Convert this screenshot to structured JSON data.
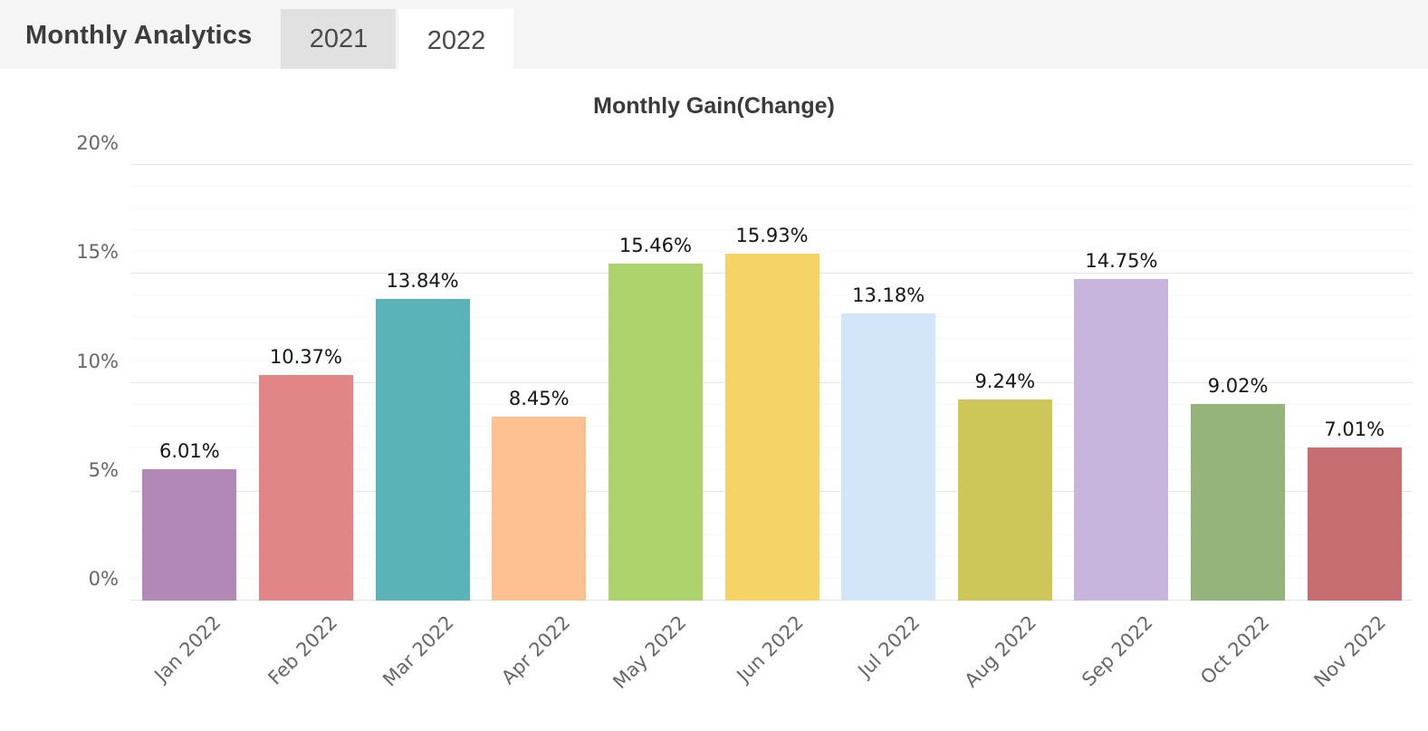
{
  "header": {
    "title": "Monthly Analytics",
    "tabs": [
      {
        "label": "2021",
        "active": false
      },
      {
        "label": "2022",
        "active": true
      }
    ]
  },
  "chart_data": {
    "type": "bar",
    "title": "Monthly Gain(Change)",
    "categories": [
      "Jan 2022",
      "Feb 2022",
      "Mar 2022",
      "Apr 2022",
      "May 2022",
      "Jun 2022",
      "Jul 2022",
      "Aug 2022",
      "Sep 2022",
      "Oct 2022",
      "Nov 2022"
    ],
    "values": [
      6.01,
      10.37,
      13.84,
      8.45,
      15.46,
      15.93,
      13.18,
      9.24,
      14.75,
      9.02,
      7.01
    ],
    "value_labels": [
      "6.01%",
      "10.37%",
      "13.84%",
      "8.45%",
      "15.46%",
      "15.93%",
      "13.18%",
      "9.24%",
      "14.75%",
      "9.02%",
      "7.01%"
    ],
    "bar_colors": [
      "#b288b7",
      "#e28586",
      "#5ab4b7",
      "#fec08f",
      "#aed36c",
      "#f5d365",
      "#d3e6f9",
      "#cdc75a",
      "#c7b5de",
      "#94b47b",
      "#c76e70"
    ],
    "xlabel": "",
    "ylabel": "",
    "ylim": [
      0,
      20
    ],
    "y_ticks": [
      "0%",
      "5%",
      "10%",
      "15%",
      "20%"
    ],
    "y_tick_values": [
      0,
      5,
      10,
      15,
      20
    ],
    "minor_grid_step": 1,
    "grid": true,
    "legend_position": "none"
  },
  "colors": {
    "header_bg": "#f5f5f5",
    "inactive_tab_bg": "#e1e1e1",
    "active_tab_bg": "#ffffff",
    "grid_major": "#e5e5e5",
    "grid_minor": "#f0f0f0",
    "axis_text": "#666666",
    "value_text": "#141414"
  }
}
